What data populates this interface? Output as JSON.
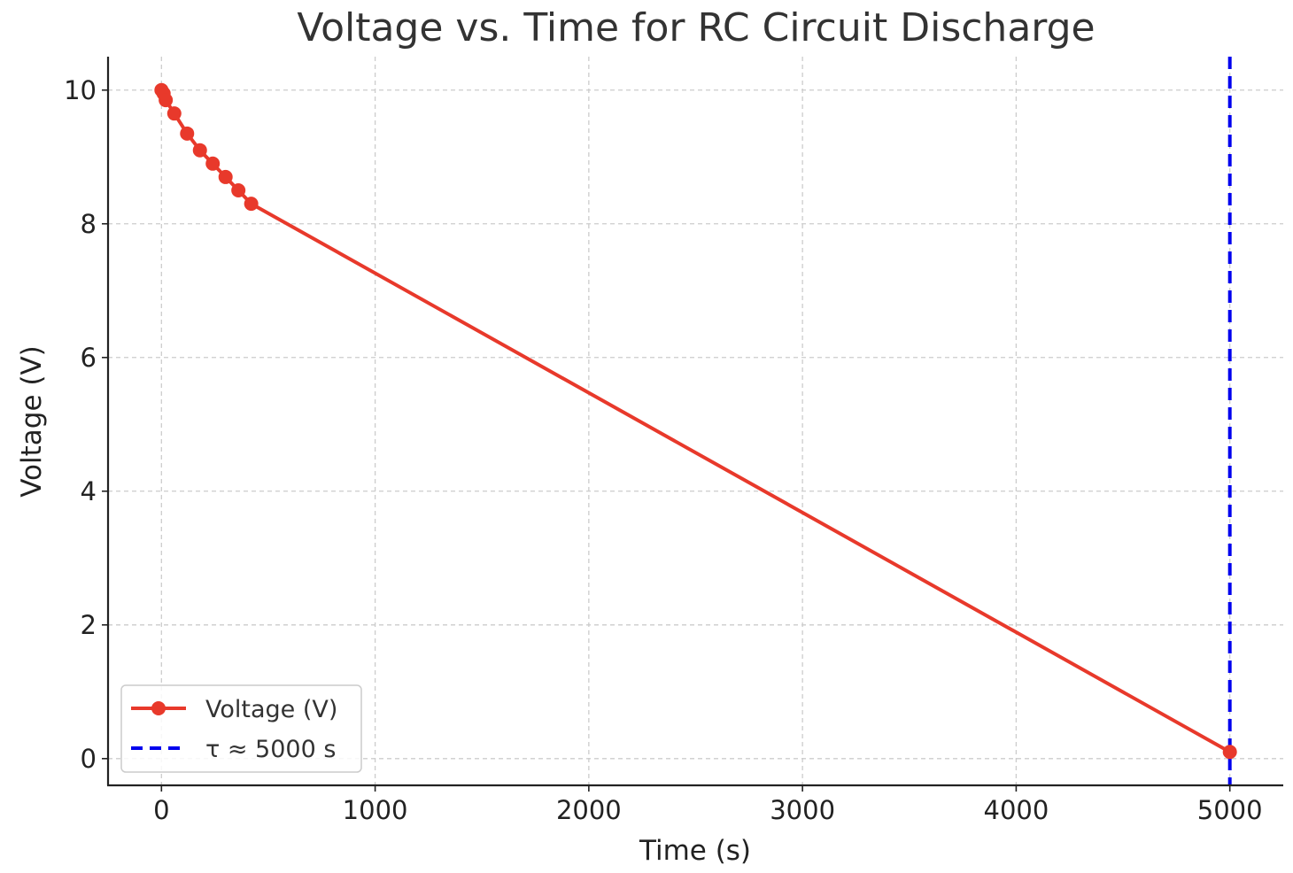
{
  "chart_data": {
    "type": "line",
    "title": "Voltage vs. Time for RC Circuit Discharge",
    "xlabel": "Time (s)",
    "ylabel": "Voltage (V)",
    "xlim": [
      -250,
      5250
    ],
    "ylim": [
      -0.4,
      10.5
    ],
    "xticks": [
      0,
      1000,
      2000,
      3000,
      4000,
      5000
    ],
    "yticks": [
      0,
      2,
      4,
      6,
      8,
      10
    ],
    "grid": true,
    "legend_position": "lower-left",
    "series": [
      {
        "name": "Voltage (V)",
        "color": "#e8392b",
        "marker": "circle",
        "x": [
          0,
          10,
          20,
          60,
          120,
          180,
          240,
          300,
          360,
          420,
          5000
        ],
        "y": [
          10.0,
          9.95,
          9.85,
          9.65,
          9.35,
          9.1,
          8.9,
          8.7,
          8.5,
          8.3,
          0.1
        ]
      }
    ],
    "vlines": [
      {
        "name": "τ ≈ 5000 s",
        "x": 5000,
        "color": "#0000ee",
        "style": "dashed"
      }
    ]
  }
}
